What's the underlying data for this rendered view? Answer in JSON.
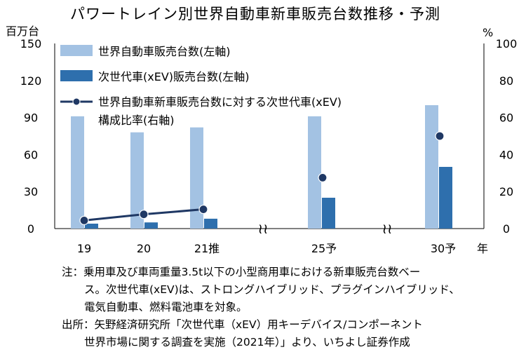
{
  "chart_data": {
    "type": "bar",
    "title": "パワートレイン別世界自動車新車販売台数推移・予測",
    "y_left_unit": "百万台",
    "y_right_unit": "%",
    "x_unit": "年",
    "categories": [
      "19",
      "20",
      "21推",
      "25予",
      "30予"
    ],
    "y_left_ticks": [
      0,
      30,
      60,
      90,
      120,
      150
    ],
    "y_right_ticks": [
      0,
      20,
      40,
      60,
      80,
      100
    ],
    "ylim_left": [
      0,
      150
    ],
    "ylim_right": [
      0,
      100
    ],
    "axis_break_symbol": "≀≀",
    "legend_placement": "top-left",
    "series": [
      {
        "name": "世界自動車販売台数(左軸)",
        "type": "bar",
        "axis": "left",
        "color": "#a3c2e3",
        "values": [
          91,
          78,
          82,
          91,
          100
        ]
      },
      {
        "name": "次世代車(xEV)販売台数(左軸)",
        "type": "bar",
        "axis": "left",
        "color": "#2e6fad",
        "values": [
          4,
          5,
          8,
          25,
          50
        ]
      },
      {
        "name_lines": [
          "世界自動車新車販売台数に対する次世代車(xEV)",
          "構成比率(右軸)"
        ],
        "type": "line",
        "axis": "right",
        "color": "#1f3864",
        "values": [
          4.4,
          7.7,
          10.4,
          27.5,
          50
        ]
      }
    ]
  },
  "notes": [
    "注：乗用車及び車両重量3.5t以下の小型商用車における新車販売台数ベー",
    "ス。次世代車(xEV)は、ストロングハイブリッド、プラグインハイブリッド、",
    "電気自動車、燃料電池車を対象。",
    "出所：矢野経済研究所「次世代車（xEV）用キーデバイス/コンポーネント",
    "世界市場に関する調査を実施（2021年）」より、いちよし証券作成"
  ]
}
